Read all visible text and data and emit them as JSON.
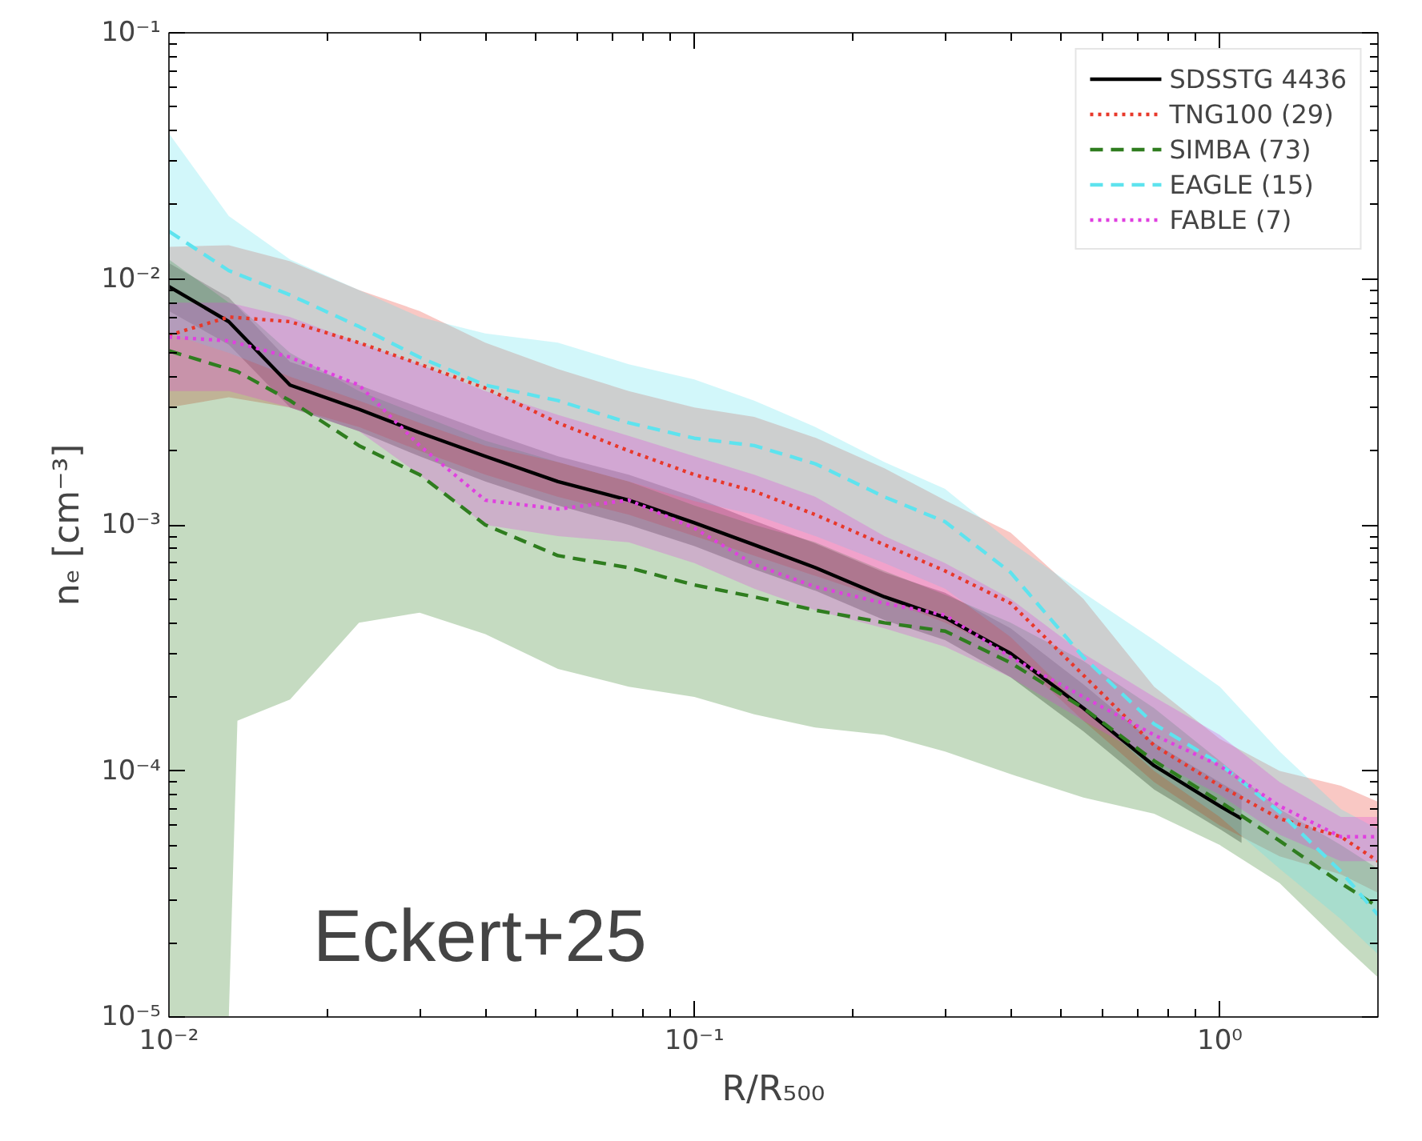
{
  "chart_data": {
    "type": "line",
    "xlabel": "R/R₅₀₀",
    "ylabel": "nₑ [cm⁻³]",
    "log": "xy",
    "xlim": [
      0.01,
      2
    ],
    "ylim": [
      1e-05,
      0.1
    ],
    "xticks": [
      {
        "value": 0.01,
        "label": "10⁻²"
      },
      {
        "value": 0.1,
        "label": "10⁻¹"
      },
      {
        "value": 1,
        "label": "10⁰"
      }
    ],
    "yticks": [
      {
        "value": 1e-05,
        "label": "10⁻⁵"
      },
      {
        "value": 0.0001,
        "label": "10⁻⁴"
      },
      {
        "value": 0.001,
        "label": "10⁻³"
      },
      {
        "value": 0.01,
        "label": "10⁻²"
      },
      {
        "value": 0.1,
        "label": "10⁻¹"
      }
    ],
    "x": [
      0.01,
      0.013,
      0.017,
      0.023,
      0.03,
      0.04,
      0.055,
      0.075,
      0.1,
      0.13,
      0.17,
      0.23,
      0.3,
      0.4,
      0.55,
      0.75,
      1.0,
      1.3,
      1.7,
      2.0
    ],
    "grid": false,
    "legend": "top right",
    "annotations": [
      "Eckert+25"
    ],
    "series": [
      {
        "name": "SDSSTG 4436",
        "color": "#000000",
        "line_style": "solid",
        "x": [
          0.01,
          0.013,
          0.017,
          0.023,
          0.03,
          0.04,
          0.055,
          0.075,
          0.1,
          0.13,
          0.17,
          0.23,
          0.3,
          0.4,
          0.55,
          0.75,
          1.0,
          1.1
        ],
        "values": [
          0.0093,
          0.0067,
          0.0037,
          0.00295,
          0.00237,
          0.0019,
          0.0015,
          0.00126,
          0.00102,
          0.00083,
          0.00067,
          0.00051,
          0.00042,
          0.0003,
          0.00018,
          0.000105,
          7.2e-05,
          6.4e-05
        ],
        "lower": [
          0.0074,
          0.0054,
          0.003,
          0.0024,
          0.0019,
          0.0015,
          0.0012,
          0.001,
          0.00082,
          0.00066,
          0.00054,
          0.00041,
          0.00034,
          0.00024,
          0.000145,
          8.4e-05,
          5.8e-05,
          5.1e-05
        ],
        "upper": [
          0.0116,
          0.0084,
          0.0046,
          0.0037,
          0.003,
          0.0024,
          0.0019,
          0.0016,
          0.0013,
          0.00104,
          0.00084,
          0.00064,
          0.00053,
          0.00038,
          0.000225,
          0.00013,
          9e-05,
          8e-05
        ]
      },
      {
        "name": "TNG100 (29)",
        "color": "#e8382a",
        "line_style": "dotted",
        "values": [
          0.0059,
          0.007,
          0.0067,
          0.0055,
          0.0045,
          0.0036,
          0.0026,
          0.002,
          0.0016,
          0.00137,
          0.0011,
          0.00083,
          0.00065,
          0.00048,
          0.000245,
          0.000127,
          8.7e-05,
          6.4e-05,
          5.4e-05,
          4.3e-05
        ],
        "lower": [
          0.003,
          0.0033,
          0.003,
          0.0025,
          0.002,
          0.0016,
          0.0013,
          0.0011,
          0.0009,
          0.00075,
          0.00062,
          0.0005,
          0.0004,
          0.0003,
          0.00016,
          9e-05,
          6e-05,
          4.5e-05,
          3.8e-05,
          3.2e-05
        ],
        "upper": [
          0.0135,
          0.0137,
          0.0118,
          0.009,
          0.0074,
          0.0055,
          0.0043,
          0.0035,
          0.003,
          0.00275,
          0.00226,
          0.0017,
          0.00126,
          0.00093,
          0.0005,
          0.00022,
          0.000135,
          0.0001,
          8.7e-05,
          7.5e-05
        ]
      },
      {
        "name": "SIMBA (73)",
        "color": "#2f7d1f",
        "line_style": "dashed",
        "x": [
          0.01,
          0.013,
          0.0135,
          0.017,
          0.023,
          0.03,
          0.04,
          0.055,
          0.075,
          0.1,
          0.13,
          0.17,
          0.23,
          0.3,
          0.4,
          0.55,
          0.75,
          1.0,
          1.3,
          1.7,
          2.0
        ],
        "values": [
          0.0051,
          0.0043,
          0.0042,
          0.0032,
          0.0021,
          0.0016,
          0.001,
          0.00075,
          0.00067,
          0.00057,
          0.00051,
          0.00045,
          0.0004,
          0.00037,
          0.000275,
          0.00018,
          0.00011,
          7.5e-05,
          5.2e-05,
          3.5e-05,
          2.8e-05
        ],
        "lower": [
          1e-05,
          1e-05,
          0.00016,
          0.000195,
          0.0004,
          0.00044,
          0.00036,
          0.00026,
          0.00022,
          0.0002,
          0.00017,
          0.00015,
          0.00014,
          0.00012,
          9.7e-05,
          7.8e-05,
          6.7e-05,
          5e-05,
          3.5e-05,
          2e-05,
          1.45e-05
        ],
        "upper": [
          0.012,
          0.008,
          0.0078,
          0.005,
          0.0035,
          0.0028,
          0.0022,
          0.0018,
          0.0015,
          0.0012,
          0.001,
          0.00085,
          0.00065,
          0.00052,
          0.0004,
          0.00028,
          0.00018,
          0.00011,
          7e-05,
          5e-05,
          4e-05
        ]
      },
      {
        "name": "EAGLE (15)",
        "color": "#5ee3ee",
        "line_style": "dashed",
        "values": [
          0.0156,
          0.0108,
          0.0086,
          0.0064,
          0.0048,
          0.0037,
          0.0032,
          0.0026,
          0.00225,
          0.0021,
          0.00177,
          0.0013,
          0.00103,
          0.00064,
          0.00029,
          0.000155,
          0.000107,
          6.8e-05,
          3.9e-05,
          2.6e-05
        ],
        "lower": [
          0.006,
          0.005,
          0.004,
          0.0032,
          0.0026,
          0.0021,
          0.0018,
          0.0015,
          0.00125,
          0.0011,
          0.0009,
          0.0007,
          0.00055,
          0.00035,
          0.00018,
          0.0001,
          6.5e-05,
          4e-05,
          2.5e-05,
          1.8e-05
        ],
        "upper": [
          0.039,
          0.018,
          0.012,
          0.009,
          0.007,
          0.006,
          0.0055,
          0.0045,
          0.0039,
          0.0032,
          0.0025,
          0.0018,
          0.0014,
          0.00085,
          0.00053,
          0.00034,
          0.00022,
          0.00012,
          7e-05,
          5.8e-05
        ]
      },
      {
        "name": "FABLE (7)",
        "color": "#e040e0",
        "line_style": "dotted",
        "values": [
          0.0058,
          0.0056,
          0.0048,
          0.0037,
          0.0021,
          0.00126,
          0.00116,
          0.00126,
          0.00097,
          0.00069,
          0.00056,
          0.00048,
          0.00043,
          0.00029,
          0.0002,
          0.00014,
          0.000105,
          7.2e-05,
          5.4e-05,
          5.4e-05
        ],
        "lower": [
          0.0035,
          0.0035,
          0.003,
          0.0024,
          0.0016,
          0.001,
          0.0009,
          0.00085,
          0.0007,
          0.00055,
          0.00045,
          0.00038,
          0.00032,
          0.00024,
          0.00016,
          0.00011,
          8e-05,
          5.5e-05,
          4.3e-05,
          4.3e-05
        ],
        "upper": [
          0.008,
          0.008,
          0.007,
          0.0055,
          0.0045,
          0.0035,
          0.0028,
          0.0023,
          0.0019,
          0.0016,
          0.0013,
          0.0009,
          0.0007,
          0.0005,
          0.0003,
          0.0002,
          0.00014,
          9e-05,
          6.5e-05,
          6.5e-05
        ]
      }
    ]
  }
}
